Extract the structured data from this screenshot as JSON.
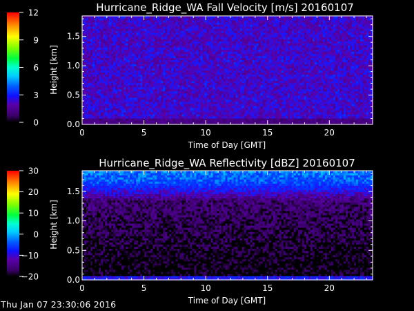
{
  "footer": {
    "timestamp": "Thu Jan 07 23:30:06 2016"
  },
  "chart_data": [
    {
      "type": "heatmap",
      "title": "Hurricane_Ridge_WA Fall Velocity [m/s] 20160107",
      "xlabel": "Time of Day [GMT]",
      "ylabel": "Height [km]",
      "xlim": [
        0,
        23.5
      ],
      "ylim": [
        0,
        1.85
      ],
      "xticks": [
        "0",
        "5",
        "10",
        "15",
        "20"
      ],
      "xtick_values": [
        0,
        5,
        10,
        15,
        20
      ],
      "yticks": [
        "0.0",
        "0.5",
        "1.0",
        "1.5"
      ],
      "ytick_values": [
        0,
        0.5,
        1.0,
        1.5
      ],
      "colorbar": {
        "min": 0,
        "max": 12,
        "ticks": [
          "0",
          "3",
          "6",
          "9",
          "12"
        ],
        "tick_values": [
          0,
          3,
          6,
          9,
          12
        ]
      },
      "field_summary": {
        "typical_value": 2.2,
        "range": [
          1.5,
          3.0
        ],
        "near_surface_value": 1.2
      }
    },
    {
      "type": "heatmap",
      "title": "Hurricane_Ridge_WA Reflectivity [dBZ] 20160107",
      "xlabel": "Time of Day [GMT]",
      "ylabel": "Height [km]",
      "xlim": [
        0,
        23.5
      ],
      "ylim": [
        0,
        1.85
      ],
      "xticks": [
        "0",
        "5",
        "10",
        "15",
        "20"
      ],
      "xtick_values": [
        0,
        5,
        10,
        15,
        20
      ],
      "yticks": [
        "0.0",
        "0.5",
        "1.0",
        "1.5"
      ],
      "ytick_values": [
        0,
        0.5,
        1.0,
        1.5
      ],
      "colorbar": {
        "min": -20,
        "max": 30,
        "ticks": [
          "−20",
          "−10",
          "0",
          "10",
          "20",
          "30"
        ],
        "tick_values": [
          -20,
          -10,
          0,
          10,
          20,
          30
        ]
      },
      "field_summary": {
        "top_value": -3,
        "middle_value": -16,
        "bottom_value": -22,
        "range": [
          -25,
          -2
        ]
      }
    }
  ],
  "colors": {
    "background": "#000000",
    "axes": "#ffffff",
    "colormap": [
      "#000000",
      "#3a0068",
      "#5a00a8",
      "#1818ff",
      "#0040ff",
      "#00a8ff",
      "#00ffff",
      "#00ff66",
      "#66ff00",
      "#e8ff00",
      "#ffcc00",
      "#ff7000",
      "#ff0000"
    ]
  }
}
